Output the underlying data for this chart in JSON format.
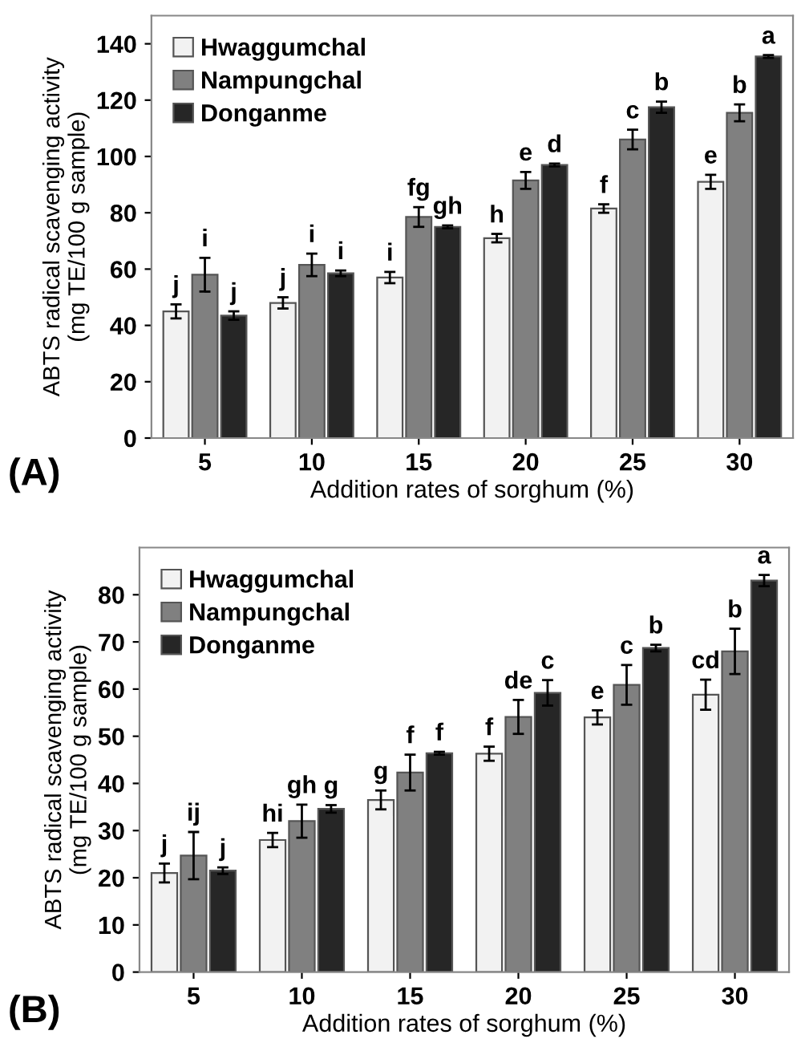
{
  "chart_data": [
    {
      "type": "bar",
      "xlabel": "Addition rates of sorghum (%)",
      "ylabel": "ABTS radical scavenging activity\n(mg TE/100 g sample)",
      "annotations": [
        "(A)"
      ],
      "categories": [
        "5",
        "10",
        "15",
        "20",
        "25",
        "30"
      ],
      "ylim": [
        0,
        150
      ],
      "yticks": [
        0,
        20,
        40,
        60,
        80,
        100,
        120,
        140
      ],
      "grid": false,
      "legend": "top left",
      "series": [
        {
          "name": "Hwaggumchal",
          "color": "#f2f2f2",
          "values": [
            45,
            48,
            57,
            71,
            81.5,
            91
          ],
          "errors": [
            2.5,
            2,
            2,
            1.5,
            1.5,
            2.5
          ],
          "value_labels": [
            "j",
            "j",
            "i",
            "h",
            "f",
            "e"
          ]
        },
        {
          "name": "Nampungchal",
          "color": "#808080",
          "values": [
            58,
            61.5,
            78.5,
            91.5,
            106,
            115.5
          ],
          "errors": [
            6,
            4,
            3.5,
            3,
            3.5,
            3
          ],
          "value_labels": [
            "i",
            "i",
            "fg",
            "e",
            "c",
            "b"
          ]
        },
        {
          "name": "Donganme",
          "color": "#262626",
          "values": [
            43.5,
            58.5,
            75,
            97,
            117.5,
            135.5
          ],
          "errors": [
            1.5,
            1,
            0.5,
            0.5,
            2,
            0.5
          ],
          "value_labels": [
            "j",
            "i",
            "gh",
            "d",
            "b",
            "a"
          ]
        }
      ]
    },
    {
      "type": "bar",
      "xlabel": "Addition rates of sorghum (%)",
      "ylabel": "ABTS radical scavenging activity\n(mg TE/100 g sample)",
      "annotations": [
        "(B)"
      ],
      "categories": [
        "5",
        "10",
        "15",
        "20",
        "25",
        "30"
      ],
      "ylim": [
        0,
        90
      ],
      "yticks": [
        0,
        10,
        20,
        30,
        40,
        50,
        60,
        70,
        80
      ],
      "grid": false,
      "legend": "top left",
      "series": [
        {
          "name": "Hwaggumchal",
          "color": "#f2f2f2",
          "values": [
            21,
            28,
            36.5,
            46.3,
            54,
            58.8
          ],
          "errors": [
            2,
            1.5,
            2,
            1.5,
            1.5,
            3.2
          ],
          "value_labels": [
            "j",
            "hi",
            "g",
            "f",
            "e",
            "cd"
          ]
        },
        {
          "name": "Nampungchal",
          "color": "#808080",
          "values": [
            24.7,
            32,
            42.3,
            54.1,
            60.9,
            68
          ],
          "errors": [
            5,
            3.5,
            3.8,
            3.6,
            4.2,
            4.8
          ],
          "value_labels": [
            "ij",
            "gh",
            "f",
            "de",
            "c",
            "b"
          ]
        },
        {
          "name": "Donganme",
          "color": "#262626",
          "values": [
            21.5,
            34.6,
            46.4,
            59.2,
            68.7,
            83
          ],
          "errors": [
            0.7,
            0.8,
            0.3,
            2.7,
            0.7,
            1.2
          ],
          "value_labels": [
            "j",
            "g",
            "f",
            "c",
            "b",
            "a"
          ]
        }
      ]
    }
  ]
}
